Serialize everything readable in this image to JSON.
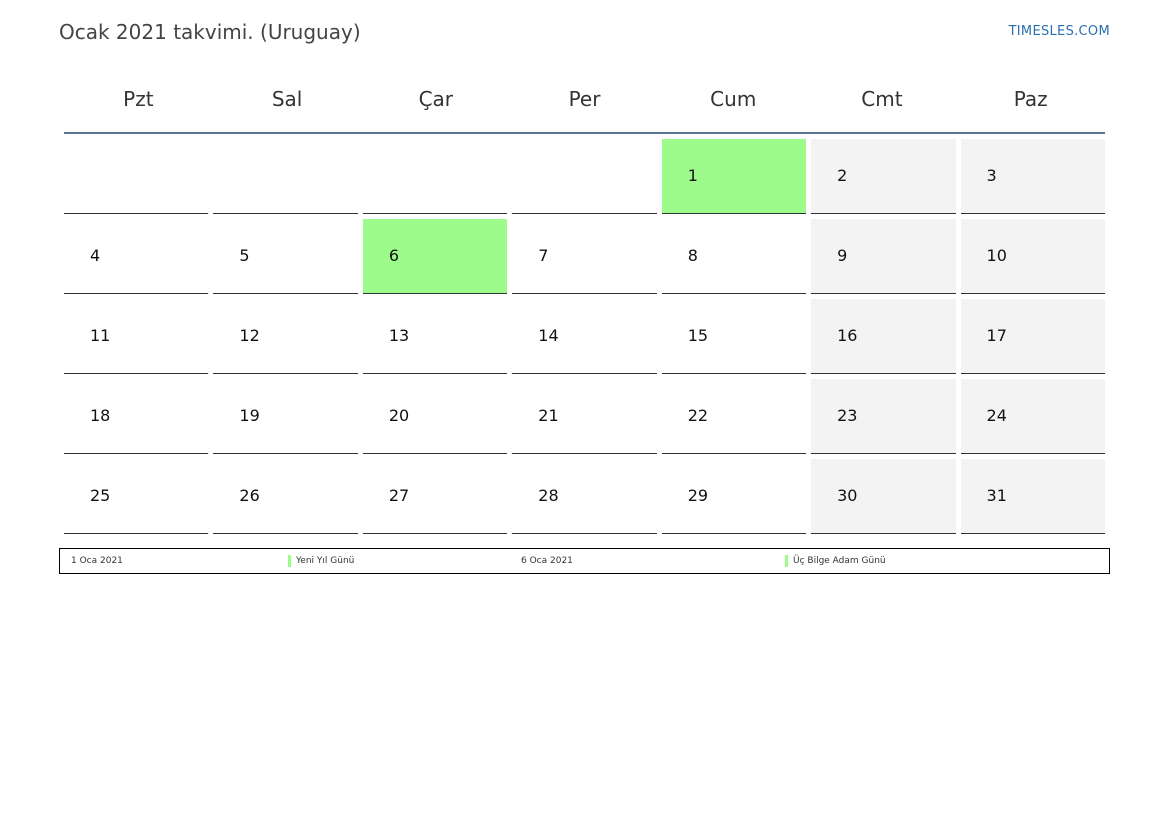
{
  "header": {
    "title": "Ocak 2021 takvimi. (Uruguay)",
    "site": "TIMESLES.COM"
  },
  "weekdays": [
    "Pzt",
    "Sal",
    "Çar",
    "Per",
    "Cum",
    "Cmt",
    "Paz"
  ],
  "weeks": [
    [
      "",
      "",
      "",
      "",
      "1",
      "2",
      "3"
    ],
    [
      "4",
      "5",
      "6",
      "7",
      "8",
      "9",
      "10"
    ],
    [
      "11",
      "12",
      "13",
      "14",
      "15",
      "16",
      "17"
    ],
    [
      "18",
      "19",
      "20",
      "21",
      "22",
      "23",
      "24"
    ],
    [
      "25",
      "26",
      "27",
      "28",
      "29",
      "30",
      "31"
    ]
  ],
  "holiday_days": [
    "1",
    "6"
  ],
  "colors": {
    "holiday": "#9cfb8a",
    "weekend": "#f3f3f3",
    "header_rule": "#5b7595",
    "link": "#2a6fb0"
  },
  "legend": [
    {
      "date": "1 Oca 2021",
      "name": "Yeni Yıl Günü"
    },
    {
      "date": "6 Oca 2021",
      "name": "Üç Bilge Adam Günü"
    }
  ]
}
